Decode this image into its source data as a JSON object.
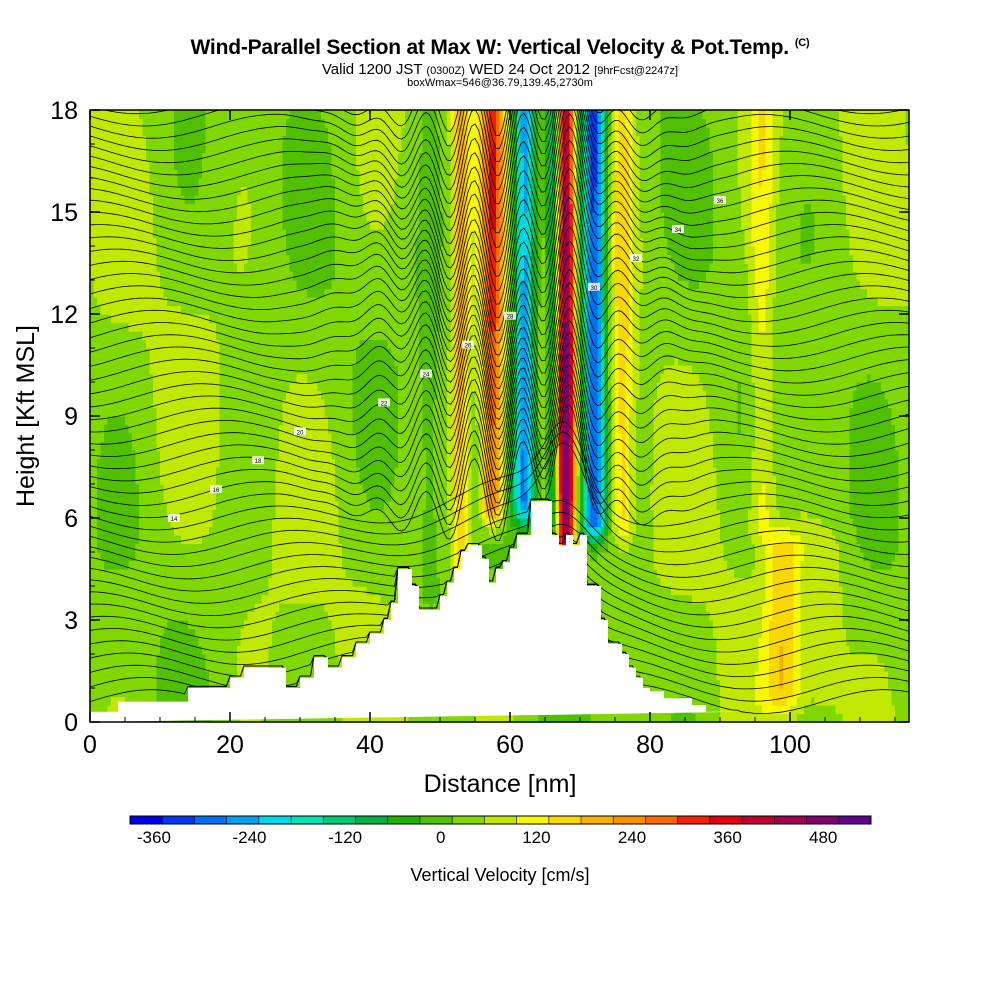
{
  "titles": {
    "main": "Wind-Parallel Section at Max W: Vertical Velocity & Pot.Temp.",
    "copyright": "(C)",
    "valid_a": "Valid 1200 JST",
    "valid_z": "(0300Z)",
    "valid_b": "WED 24 Oct 2012",
    "forecast": "[9hrFcst@2247z]",
    "box": "boxWmax=546@36.79,139.45,2730m"
  },
  "chart_data": {
    "type": "heatmap",
    "xlabel": "Distance [nm]",
    "ylabel": "Height [Kft MSL]",
    "xlim": [
      0,
      117
    ],
    "ylim": [
      0,
      18
    ],
    "x_ticks": [
      0,
      20,
      40,
      60,
      80,
      100
    ],
    "y_ticks": [
      0,
      3,
      6,
      9,
      12,
      15,
      18
    ],
    "colorbar": {
      "label": "Vertical Velocity [cm/s]",
      "range": [
        -390,
        540
      ],
      "tick_values": [
        -360,
        -240,
        -120,
        0,
        120,
        240,
        360,
        480
      ],
      "tick_labels": [
        "-360",
        "-240",
        "-120",
        "0",
        "120",
        "240",
        "360",
        "480"
      ],
      "colors": [
        "#0000e8",
        "#0038f0",
        "#0070f0",
        "#00a0f0",
        "#00d8e8",
        "#00e0b0",
        "#00c870",
        "#00b040",
        "#20b000",
        "#50c000",
        "#80d800",
        "#c0e800",
        "#f8f800",
        "#f8d800",
        "#f8b000",
        "#f89000",
        "#f86800",
        "#f02000",
        "#e00010",
        "#c00030",
        "#a00050",
        "#800070",
        "#600090"
      ]
    },
    "terrain_profile": {
      "x": [
        0,
        4,
        4,
        14,
        14,
        20,
        20,
        22,
        22,
        28,
        28,
        30,
        30,
        32,
        32,
        34,
        34,
        36,
        36,
        38,
        38,
        40,
        40,
        42,
        42,
        43,
        43,
        44,
        44,
        46,
        46,
        47,
        47,
        50,
        50,
        51,
        51,
        52,
        52,
        53,
        53,
        54,
        54,
        56,
        56,
        57,
        57,
        58,
        58,
        59,
        59,
        60,
        60,
        61,
        61,
        63,
        63,
        66,
        66,
        67,
        67,
        68,
        68,
        69,
        69,
        70,
        70,
        71,
        71,
        73,
        73,
        74,
        74,
        76,
        76,
        77,
        77,
        78,
        78,
        79,
        79,
        80,
        80,
        82,
        82,
        86,
        86,
        88,
        88,
        90,
        90,
        93,
        93,
        117
      ],
      "y": [
        0.3,
        0.3,
        0.6,
        0.6,
        1.0,
        1.0,
        1.3,
        1.3,
        1.6,
        1.6,
        1.0,
        1.0,
        1.3,
        1.3,
        1.9,
        1.9,
        1.6,
        1.6,
        1.9,
        1.9,
        2.3,
        2.3,
        2.6,
        2.6,
        3.0,
        3.0,
        3.5,
        3.5,
        4.5,
        4.5,
        4.0,
        4.0,
        3.3,
        3.3,
        3.7,
        3.7,
        4.1,
        4.1,
        4.5,
        4.5,
        5.0,
        5.0,
        5.2,
        5.2,
        4.8,
        4.8,
        4.1,
        4.1,
        4.5,
        4.5,
        4.7,
        4.7,
        5.1,
        5.1,
        5.5,
        5.5,
        6.5,
        6.5,
        5.5,
        5.5,
        5.2,
        5.2,
        5.5,
        5.5,
        5.2,
        5.2,
        5.5,
        5.5,
        4.0,
        4.0,
        3.0,
        3.0,
        2.3,
        2.3,
        2.0,
        2.0,
        1.6,
        1.6,
        1.3,
        1.3,
        1.0,
        1.0,
        0.9,
        0.9,
        0.7,
        0.7,
        0.5,
        0.5,
        0.3,
        0.3,
        0.3,
        0.3,
        0.3
      ]
    },
    "velocity_features": [
      {
        "x": 57.5,
        "z0": 6.5,
        "z1": 18,
        "half_width": 1.6,
        "value": 260
      },
      {
        "x": 53,
        "z0": 5,
        "z1": 18,
        "half_width": 1.2,
        "value": 150
      },
      {
        "x": 62,
        "z0": 6.5,
        "z1": 18,
        "half_width": 1.6,
        "value": -300
      },
      {
        "x": 68,
        "z0": 5.5,
        "z1": 18,
        "half_width": 1.2,
        "value": 420
      },
      {
        "x": 72,
        "z0": 6,
        "z1": 18,
        "half_width": 1.7,
        "value": -360
      },
      {
        "x": 66,
        "z0": 6,
        "z1": 18,
        "half_width": 0.8,
        "value": -160
      },
      {
        "x": 76,
        "z0": 6,
        "z1": 18,
        "half_width": 1.6,
        "value": 110
      },
      {
        "x": 96,
        "z0": 6,
        "z1": 18,
        "half_width": 1.8,
        "value": 80
      },
      {
        "x": 48.5,
        "z0": 4,
        "z1": 18,
        "half_width": 1.5,
        "value": -40
      },
      {
        "x": 99,
        "z0": 1,
        "z1": 5,
        "half_width": 2.5,
        "value": 120
      },
      {
        "x": 105,
        "z0": 1,
        "z1": 5,
        "half_width": 3,
        "value": 40
      }
    ],
    "theta_contours": {
      "line_count": 50,
      "labels": [
        "14",
        "16",
        "18",
        "20",
        "22",
        "24",
        "26",
        "28",
        "30",
        "32",
        "34",
        "36"
      ]
    }
  }
}
